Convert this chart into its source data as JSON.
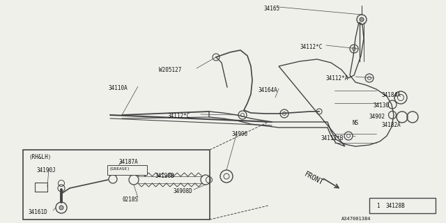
{
  "bg_color": "#f0f0eb",
  "line_color": "#444444",
  "diagram_ref": "A347001384",
  "legend_num": "1",
  "legend_part": "34128B"
}
